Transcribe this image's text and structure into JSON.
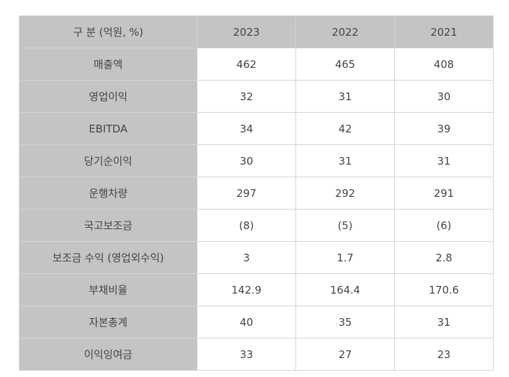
{
  "table": {
    "header": {
      "label": "구 분 (억원, %)",
      "years": [
        "2023",
        "2022",
        "2021"
      ]
    },
    "rows": [
      {
        "label": "매출액",
        "values": [
          "462",
          "465",
          "408"
        ]
      },
      {
        "label": "영업이익",
        "values": [
          "32",
          "31",
          "30"
        ]
      },
      {
        "label": "EBITDA",
        "values": [
          "34",
          "42",
          "39"
        ]
      },
      {
        "label": "당기순이익",
        "values": [
          "30",
          "31",
          "31"
        ]
      },
      {
        "label": "운행차량",
        "values": [
          "297",
          "292",
          "291"
        ]
      },
      {
        "label": "국고보조금",
        "values": [
          "(8)",
          "(5)",
          "(6)"
        ]
      },
      {
        "label": "보조금 수익 (영업외수익)",
        "values": [
          "3",
          "1.7",
          "2.8"
        ]
      },
      {
        "label": "부채비율",
        "values": [
          "142.9",
          "164.4",
          "170.6"
        ]
      },
      {
        "label": "자본총계",
        "values": [
          "40",
          "35",
          "31"
        ]
      },
      {
        "label": "이익잉여금",
        "values": [
          "33",
          "27",
          "23"
        ]
      }
    ]
  }
}
